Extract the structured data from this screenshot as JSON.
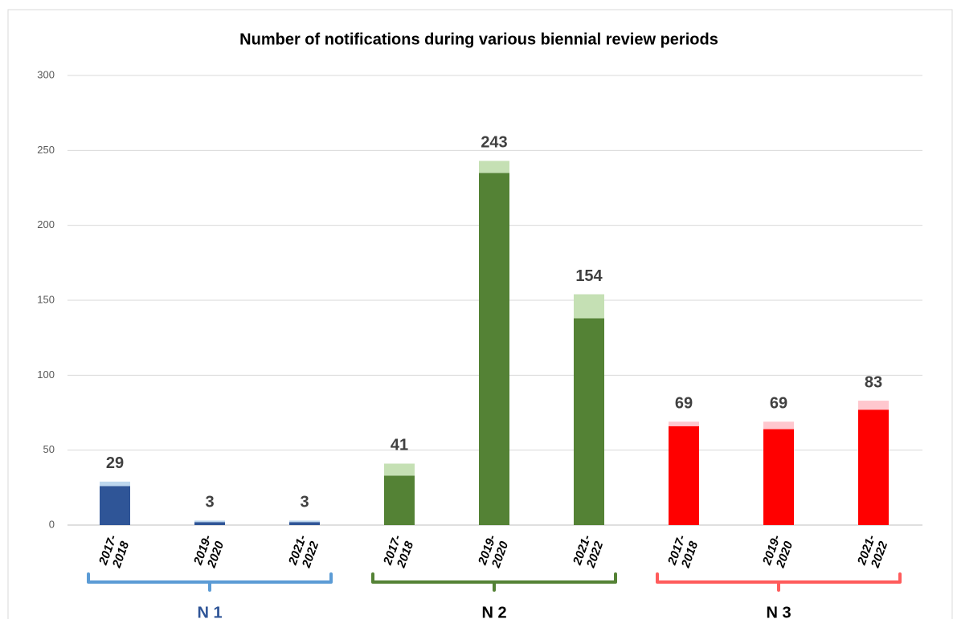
{
  "chart_data": {
    "type": "stacked_bar",
    "title": "Number of notifications during various biennial review periods",
    "categories": [
      [
        "2017-",
        "2018"
      ],
      [
        "2019-",
        "2020"
      ],
      [
        "2021-",
        "2022"
      ],
      [
        "2017-",
        "2018"
      ],
      [
        "2019-",
        "2020"
      ],
      [
        "2021-",
        "2022"
      ],
      [
        "2017-",
        "2018"
      ],
      [
        "2019-",
        "2020"
      ],
      [
        "2021-",
        "2022"
      ]
    ],
    "series": [
      {
        "colors": [
          "#2f5597",
          "#2f5597",
          "#2f5597",
          "#548235",
          "#548235",
          "#548235",
          "#ff0000",
          "#ff0000",
          "#ff0000"
        ],
        "values": [
          26,
          2,
          2,
          33,
          235,
          138,
          66,
          64,
          77
        ]
      },
      {
        "colors": [
          "#bdd7ee",
          "#bdd7ee",
          "#bdd7ee",
          "#c5e0b4",
          "#c5e0b4",
          "#c5e0b4",
          "#ffc7ce",
          "#ffc7ce",
          "#ffc7ce"
        ],
        "values": [
          3,
          1,
          1,
          8,
          8,
          16,
          3,
          5,
          6
        ]
      }
    ],
    "totals": [
      29,
      3,
      3,
      41,
      243,
      154,
      69,
      69,
      83
    ],
    "groups": [
      {
        "label": "N 1",
        "color": "#5b9bd5",
        "label_color": "#2f5597"
      },
      {
        "label": "N 2",
        "color": "#548235",
        "label_color": "#000000"
      },
      {
        "label": "N 3",
        "color": "#ff5b5b",
        "label_color": "#000000"
      }
    ],
    "ylim": [
      0,
      300
    ],
    "yticks": [
      0,
      50,
      100,
      150,
      200,
      250,
      300
    ],
    "grid": true
  }
}
